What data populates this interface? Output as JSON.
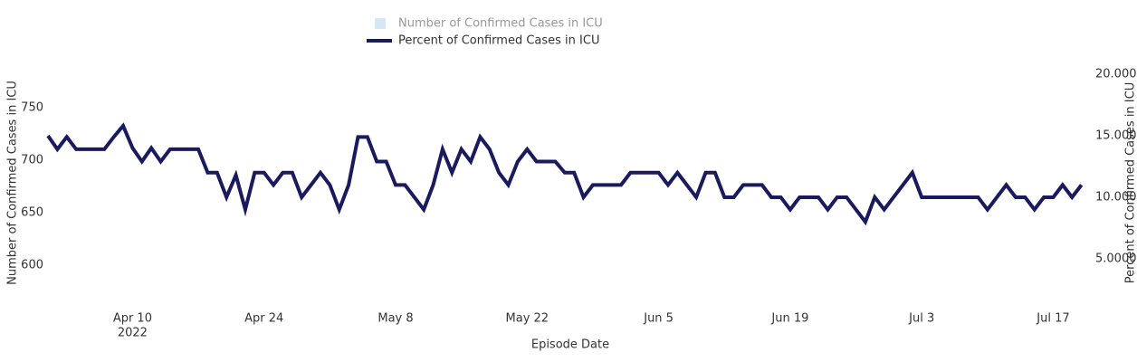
{
  "chart_data": {
    "type": "line",
    "x_title": "Episode Date",
    "y_title": "Number of Confirmed Cases in ICU",
    "y2_title": "Percent of Confirmed Cases in ICU",
    "x": [
      "2022-04-01",
      "2022-04-02",
      "2022-04-03",
      "2022-04-04",
      "2022-04-05",
      "2022-04-06",
      "2022-04-07",
      "2022-04-08",
      "2022-04-09",
      "2022-04-10",
      "2022-04-11",
      "2022-04-12",
      "2022-04-13",
      "2022-04-14",
      "2022-04-15",
      "2022-04-16",
      "2022-04-17",
      "2022-04-18",
      "2022-04-19",
      "2022-04-20",
      "2022-04-21",
      "2022-04-22",
      "2022-04-23",
      "2022-04-24",
      "2022-04-25",
      "2022-04-26",
      "2022-04-27",
      "2022-04-28",
      "2022-04-29",
      "2022-04-30",
      "2022-05-01",
      "2022-05-02",
      "2022-05-03",
      "2022-05-04",
      "2022-05-05",
      "2022-05-06",
      "2022-05-07",
      "2022-05-08",
      "2022-05-09",
      "2022-05-10",
      "2022-05-11",
      "2022-05-12",
      "2022-05-13",
      "2022-05-14",
      "2022-05-15",
      "2022-05-16",
      "2022-05-17",
      "2022-05-18",
      "2022-05-19",
      "2022-05-20",
      "2022-05-21",
      "2022-05-22",
      "2022-05-23",
      "2022-05-24",
      "2022-05-25",
      "2022-05-26",
      "2022-05-27",
      "2022-05-28",
      "2022-05-29",
      "2022-05-30",
      "2022-05-31",
      "2022-06-01",
      "2022-06-02",
      "2022-06-03",
      "2022-06-04",
      "2022-06-05",
      "2022-06-06",
      "2022-06-07",
      "2022-06-08",
      "2022-06-09",
      "2022-06-10",
      "2022-06-11",
      "2022-06-12",
      "2022-06-13",
      "2022-06-14",
      "2022-06-15",
      "2022-06-16",
      "2022-06-17",
      "2022-06-18",
      "2022-06-19",
      "2022-06-20",
      "2022-06-21",
      "2022-06-22",
      "2022-06-23",
      "2022-06-24",
      "2022-06-25",
      "2022-06-26",
      "2022-06-27",
      "2022-06-28",
      "2022-06-29",
      "2022-06-30",
      "2022-07-01",
      "2022-07-02",
      "2022-07-03",
      "2022-07-04",
      "2022-07-05",
      "2022-07-06",
      "2022-07-07",
      "2022-07-08",
      "2022-07-09",
      "2022-07-10",
      "2022-07-11",
      "2022-07-12",
      "2022-07-13",
      "2022-07-14",
      "2022-07-15",
      "2022-07-16",
      "2022-07-17",
      "2022-07-18",
      "2022-07-19",
      "2022-07-20"
    ],
    "series": [
      {
        "name": "Number of Confirmed Cases in ICU",
        "color": "#c6dbef",
        "visible": false
      },
      {
        "name": "Percent of Confirmed Cases in ICU",
        "color": "#1a1a5e",
        "axis": "y2",
        "values": [
          15.0,
          13.9,
          14.9,
          13.9,
          13.9,
          13.9,
          13.9,
          14.9,
          15.8,
          14.0,
          12.9,
          14.0,
          12.9,
          13.9,
          13.9,
          13.9,
          13.9,
          12.0,
          12.0,
          10.0,
          11.8,
          9.0,
          12.0,
          12.0,
          11.0,
          12.0,
          12.0,
          10.0,
          11.0,
          12.0,
          11.0,
          9.0,
          11.0,
          14.9,
          14.9,
          12.9,
          12.9,
          11.0,
          11.0,
          10.0,
          9.0,
          11.0,
          13.9,
          12.0,
          13.9,
          12.9,
          14.9,
          13.9,
          12.0,
          11.0,
          12.9,
          13.9,
          12.9,
          12.9,
          12.9,
          12.0,
          12.0,
          10.0,
          11.0,
          11.0,
          11.0,
          11.0,
          12.0,
          12.0,
          12.0,
          12.0,
          11.0,
          12.0,
          11.0,
          10.0,
          12.0,
          12.0,
          10.0,
          10.0,
          11.0,
          11.0,
          11.0,
          10.0,
          10.0,
          9.0,
          10.0,
          10.0,
          10.0,
          9.0,
          10.0,
          10.0,
          9.0,
          8.0,
          10.0,
          9.0,
          10.0,
          11.0,
          12.0,
          10.0,
          10.0,
          10.0,
          10.0,
          10.0,
          10.0,
          10.0,
          9.0,
          10.0,
          11.0,
          10.0,
          10.0,
          9.0,
          10.0,
          10.0,
          11.0,
          10.0,
          11.0
        ]
      }
    ],
    "xlim": [
      "2022-04-01",
      "2022-07-21"
    ],
    "xticks": [
      {
        "value": "2022-04-10",
        "label": "Apr 10",
        "sublabel": "2022"
      },
      {
        "value": "2022-04-24",
        "label": "Apr 24"
      },
      {
        "value": "2022-05-08",
        "label": "May 8"
      },
      {
        "value": "2022-05-22",
        "label": "May 22"
      },
      {
        "value": "2022-06-05",
        "label": "Jun 5"
      },
      {
        "value": "2022-06-19",
        "label": "Jun 19"
      },
      {
        "value": "2022-07-03",
        "label": "Jul 3"
      },
      {
        "value": "2022-07-17",
        "label": "Jul 17"
      }
    ],
    "ylim": [
      568,
      792
    ],
    "yticks": [
      600,
      650,
      700,
      750
    ],
    "y2lim": [
      1.76,
      20.88
    ],
    "y2ticks": [
      {
        "value": 5,
        "label": "5.0000"
      },
      {
        "value": 10,
        "label": "10.000"
      },
      {
        "value": 15,
        "label": "15.000"
      },
      {
        "value": 20,
        "label": "20.000"
      }
    ],
    "grid": false
  }
}
